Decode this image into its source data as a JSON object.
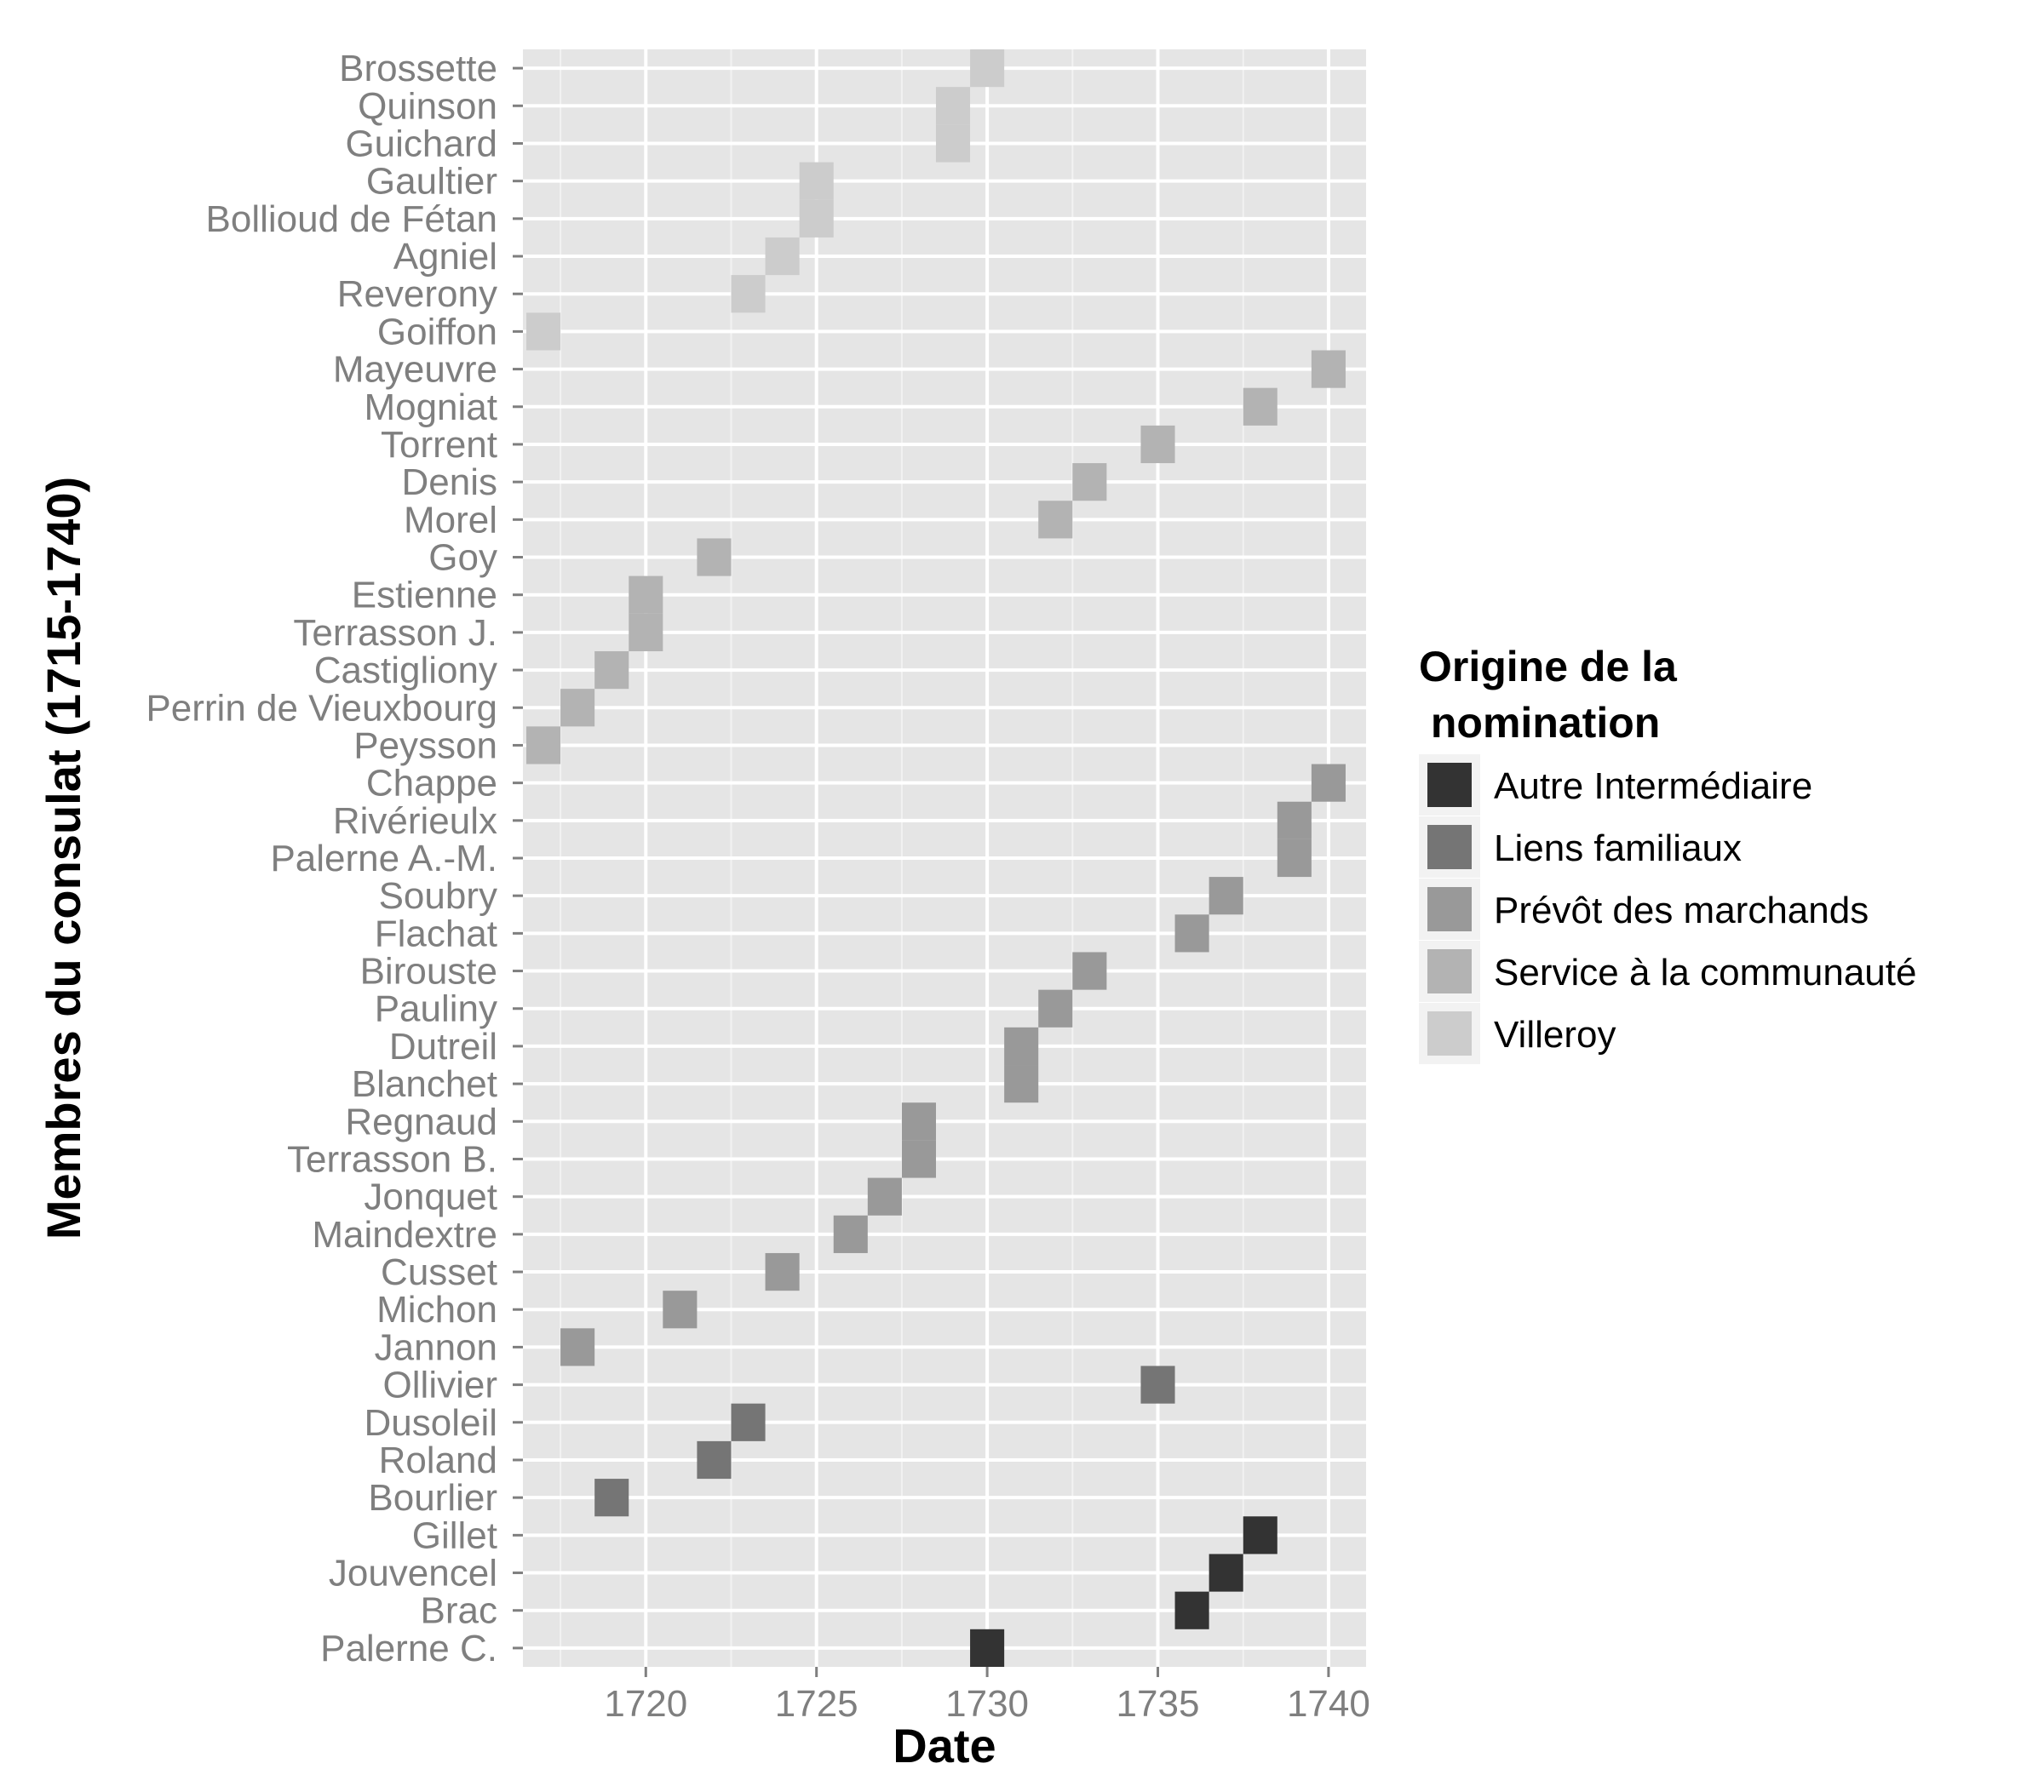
{
  "chart_data": {
    "type": "heatmap",
    "title": "",
    "xlabel": "Date",
    "ylabel": "Membres du consulat (1715-1740)",
    "xlim": [
      1716.4,
      1741.1
    ],
    "x_ticks": [
      1720,
      1725,
      1730,
      1735,
      1740
    ],
    "grid": true,
    "legend": {
      "title": "Origine de la\n nomination",
      "placement": "right",
      "entries": [
        {
          "key": "autre",
          "label": "Autre Intermédiaire",
          "color": "#333333"
        },
        {
          "key": "liens",
          "label": "Liens familiaux",
          "color": "#757575"
        },
        {
          "key": "prevot",
          "label": "Prévôt des marchands",
          "color": "#999999"
        },
        {
          "key": "service",
          "label": "Service à la communauté",
          "color": "#b3b3b3"
        },
        {
          "key": "villeroy",
          "label": "Villeroy",
          "color": "#cccccc"
        }
      ]
    },
    "categories": [
      "Brossette",
      "Quinson",
      "Guichard",
      "Gaultier",
      "Bollioud de Fétan",
      "Agniel",
      "Reverony",
      "Goiffon",
      "Mayeuvre",
      "Mogniat",
      "Torrent",
      "Denis",
      "Morel",
      "Goy",
      "Estienne",
      "Terrasson J.",
      "Castigliony",
      "Perrin de Vieuxbourg",
      "Peysson",
      "Chappe",
      "Rivérieulx",
      "Palerne A.-M.",
      "Soubry",
      "Flachat",
      "Birouste",
      "Pauliny",
      "Dutreil",
      "Blanchet",
      "Regnaud",
      "Terrasson B.",
      "Jonquet",
      "Maindextre",
      "Cusset",
      "Michon",
      "Jannon",
      "Ollivier",
      "Dusoleil",
      "Roland",
      "Bourlier",
      "Gillet",
      "Jouvencel",
      "Brac",
      "Palerne C."
    ],
    "cells": [
      {
        "member": "Brossette",
        "year": 1730,
        "origin": "villeroy"
      },
      {
        "member": "Quinson",
        "year": 1729,
        "origin": "villeroy"
      },
      {
        "member": "Guichard",
        "year": 1729,
        "origin": "villeroy"
      },
      {
        "member": "Gaultier",
        "year": 1725,
        "origin": "villeroy"
      },
      {
        "member": "Bollioud de Fétan",
        "year": 1725,
        "origin": "villeroy"
      },
      {
        "member": "Agniel",
        "year": 1724,
        "origin": "villeroy"
      },
      {
        "member": "Reverony",
        "year": 1723,
        "origin": "villeroy"
      },
      {
        "member": "Goiffon",
        "year": 1717,
        "origin": "villeroy"
      },
      {
        "member": "Mayeuvre",
        "year": 1740,
        "origin": "service"
      },
      {
        "member": "Mogniat",
        "year": 1738,
        "origin": "service"
      },
      {
        "member": "Torrent",
        "year": 1735,
        "origin": "service"
      },
      {
        "member": "Denis",
        "year": 1733,
        "origin": "service"
      },
      {
        "member": "Morel",
        "year": 1732,
        "origin": "service"
      },
      {
        "member": "Goy",
        "year": 1722,
        "origin": "service"
      },
      {
        "member": "Estienne",
        "year": 1720,
        "origin": "service"
      },
      {
        "member": "Terrasson J.",
        "year": 1720,
        "origin": "service"
      },
      {
        "member": "Castigliony",
        "year": 1719,
        "origin": "service"
      },
      {
        "member": "Perrin de Vieuxbourg",
        "year": 1718,
        "origin": "service"
      },
      {
        "member": "Peysson",
        "year": 1717,
        "origin": "service"
      },
      {
        "member": "Chappe",
        "year": 1740,
        "origin": "prevot"
      },
      {
        "member": "Rivérieulx",
        "year": 1739,
        "origin": "prevot"
      },
      {
        "member": "Palerne A.-M.",
        "year": 1739,
        "origin": "prevot"
      },
      {
        "member": "Soubry",
        "year": 1737,
        "origin": "prevot"
      },
      {
        "member": "Flachat",
        "year": 1736,
        "origin": "prevot"
      },
      {
        "member": "Birouste",
        "year": 1733,
        "origin": "prevot"
      },
      {
        "member": "Pauliny",
        "year": 1732,
        "origin": "prevot"
      },
      {
        "member": "Dutreil",
        "year": 1731,
        "origin": "prevot"
      },
      {
        "member": "Blanchet",
        "year": 1731,
        "origin": "prevot"
      },
      {
        "member": "Regnaud",
        "year": 1728,
        "origin": "prevot"
      },
      {
        "member": "Terrasson B.",
        "year": 1728,
        "origin": "prevot"
      },
      {
        "member": "Jonquet",
        "year": 1727,
        "origin": "prevot"
      },
      {
        "member": "Maindextre",
        "year": 1726,
        "origin": "prevot"
      },
      {
        "member": "Cusset",
        "year": 1724,
        "origin": "prevot"
      },
      {
        "member": "Michon",
        "year": 1721,
        "origin": "prevot"
      },
      {
        "member": "Jannon",
        "year": 1718,
        "origin": "prevot"
      },
      {
        "member": "Ollivier",
        "year": 1735,
        "origin": "liens"
      },
      {
        "member": "Dusoleil",
        "year": 1723,
        "origin": "liens"
      },
      {
        "member": "Roland",
        "year": 1722,
        "origin": "liens"
      },
      {
        "member": "Bourlier",
        "year": 1719,
        "origin": "liens"
      },
      {
        "member": "Gillet",
        "year": 1738,
        "origin": "autre"
      },
      {
        "member": "Jouvencel",
        "year": 1737,
        "origin": "autre"
      },
      {
        "member": "Brac",
        "year": 1736,
        "origin": "autre"
      },
      {
        "member": "Palerne C.",
        "year": 1730,
        "origin": "autre"
      }
    ]
  }
}
